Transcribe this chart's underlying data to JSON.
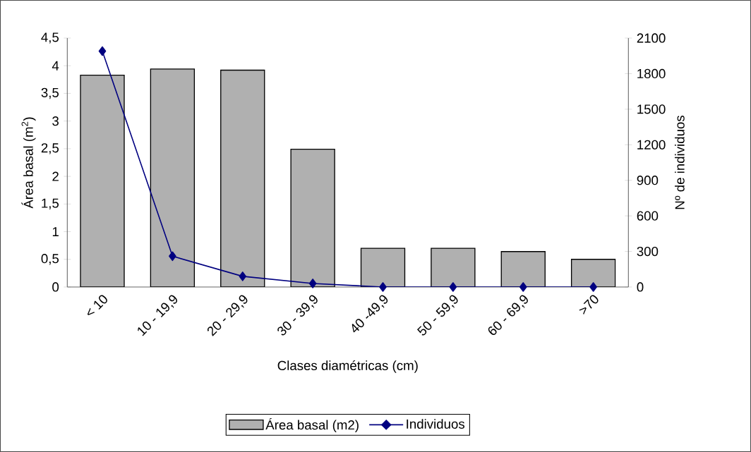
{
  "chart_data": {
    "type": "bar",
    "xlabel": "Clases diamétricas (cm)",
    "ylabel": "Área basal (m$^{2}$)",
    "y2label": "Nº de individuos",
    "categories": [
      "< 10",
      "10 - 19,9",
      "20 - 29,9",
      "30 - 39,9",
      "40 -49,9",
      "50 - 59,9",
      "60 - 69,9",
      ">70"
    ],
    "series": [
      {
        "name": "Área basal (m2)",
        "color": "#b0b0b0",
        "values": [
          3.83,
          3.94,
          3.92,
          2.49,
          0.7,
          0.7,
          0.64,
          0.5
        ]
      },
      {
        "name": "Individuos",
        "type": "line",
        "axis": "y2",
        "color": "#000080",
        "marker": "diamond",
        "values": [
          1990,
          260,
          90,
          30,
          0,
          0,
          0,
          0
        ]
      }
    ],
    "ylim": [
      0,
      4.5
    ],
    "yticks": [
      0,
      {
        "value": 0.5,
        "label": "0,5"
      },
      1,
      {
        "value": 1.5,
        "label": "1,5"
      },
      2,
      {
        "value": 2.5,
        "label": "2,5"
      },
      3,
      {
        "value": 3.5,
        "label": "3,5"
      },
      4,
      {
        "value": 4.5,
        "label": "4,5"
      }
    ],
    "y2lim": [
      0,
      2100
    ],
    "y2ticks": [
      0,
      300,
      600,
      900,
      1200,
      1500,
      1800,
      2100
    ],
    "legend": "bottom",
    "grid": false
  }
}
